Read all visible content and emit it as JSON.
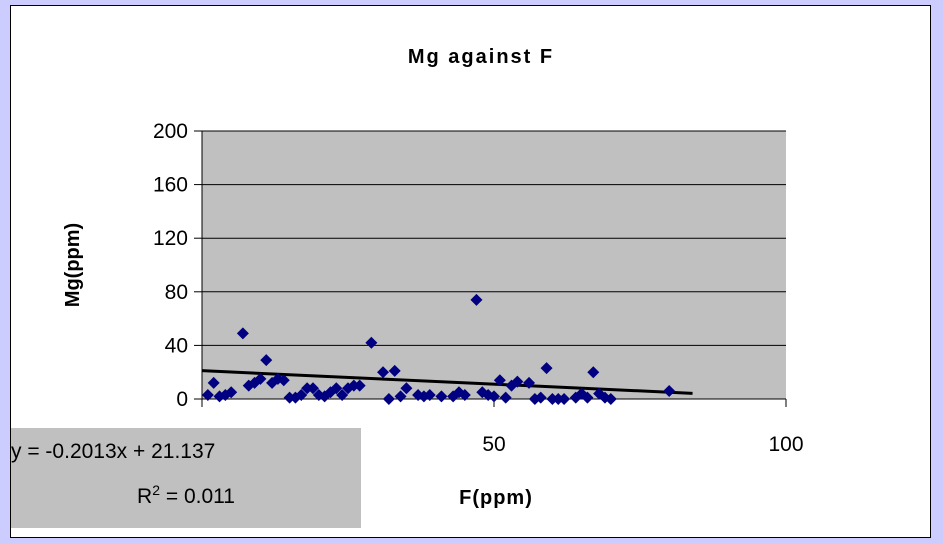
{
  "chart_data": {
    "type": "scatter",
    "title": "Mg against F",
    "xlabel": "F(ppm)",
    "ylabel": "Mg(ppm)",
    "xlim": [
      0,
      100
    ],
    "ylim": [
      0,
      200
    ],
    "xticks": [
      "0",
      "50",
      "100"
    ],
    "yticks": [
      "0",
      "40",
      "80",
      "120",
      "160",
      "200"
    ],
    "grid": "horizontal",
    "colors": {
      "plot_bg": "#c0c0c0",
      "marker": "#000080",
      "trendline": "#000000",
      "page_bg": "#ccccff"
    },
    "points": [
      [
        1,
        3
      ],
      [
        2,
        12
      ],
      [
        3,
        2
      ],
      [
        4,
        3
      ],
      [
        5,
        5
      ],
      [
        7,
        49
      ],
      [
        8,
        10
      ],
      [
        9,
        12
      ],
      [
        10,
        15
      ],
      [
        11,
        29
      ],
      [
        12,
        12
      ],
      [
        13,
        15
      ],
      [
        14,
        14
      ],
      [
        15,
        1
      ],
      [
        16,
        1
      ],
      [
        17,
        3
      ],
      [
        18,
        8
      ],
      [
        19,
        8
      ],
      [
        20,
        3
      ],
      [
        21,
        2
      ],
      [
        22,
        5
      ],
      [
        23,
        8
      ],
      [
        24,
        3
      ],
      [
        25,
        8
      ],
      [
        26,
        10
      ],
      [
        27,
        10
      ],
      [
        29,
        42
      ],
      [
        31,
        20
      ],
      [
        32,
        0
      ],
      [
        33,
        21
      ],
      [
        34,
        2
      ],
      [
        35,
        8
      ],
      [
        37,
        3
      ],
      [
        38,
        2
      ],
      [
        39,
        3
      ],
      [
        41,
        2
      ],
      [
        43,
        2
      ],
      [
        44,
        5
      ],
      [
        45,
        3
      ],
      [
        47,
        74
      ],
      [
        48,
        5
      ],
      [
        49,
        3
      ],
      [
        50,
        2
      ],
      [
        51,
        14
      ],
      [
        52,
        1
      ],
      [
        53,
        10
      ],
      [
        54,
        13
      ],
      [
        56,
        12
      ],
      [
        57,
        0
      ],
      [
        58,
        1
      ],
      [
        59,
        23
      ],
      [
        60,
        0
      ],
      [
        61,
        0
      ],
      [
        62,
        0
      ],
      [
        64,
        1
      ],
      [
        65,
        4
      ],
      [
        66,
        1
      ],
      [
        67,
        20
      ],
      [
        68,
        4
      ],
      [
        69,
        1
      ],
      [
        70,
        0
      ],
      [
        80,
        6
      ]
    ],
    "trendline": {
      "type": "linear",
      "slope": -0.2013,
      "intercept": 21.137,
      "x_range": [
        0,
        84
      ]
    },
    "equation": {
      "line1": "y = -0.2013x + 21.137",
      "r2_prefix": "R",
      "r2_sup": "2",
      "r2_suffix": " = 0.011"
    }
  }
}
